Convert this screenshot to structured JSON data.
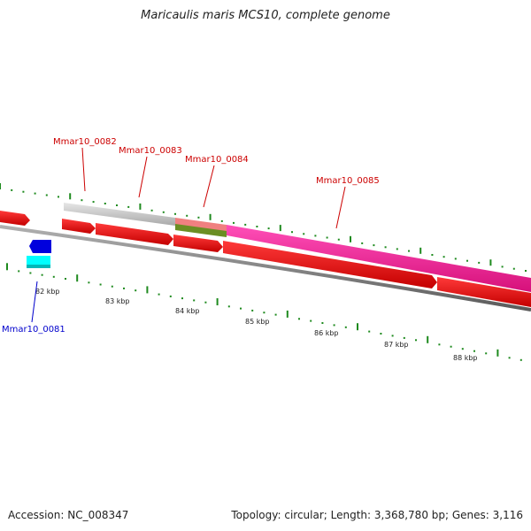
{
  "title": "Maricaulis maris MCS10, complete genome",
  "footer": {
    "accession": "Accession: NC_008347",
    "stats": "Topology: circular; Length: 3,368,780 bp; Genes: 3,116"
  },
  "colors": {
    "cds": "#ff0000",
    "gene_shade": "#c8c8c8",
    "pseudo_pink": "#f08080",
    "highlight_magenta": "#ff1493",
    "olive": "#6b8e23",
    "backbone": "#808080",
    "tick": "#008000",
    "label_red": "#cc0000",
    "label_blue": "#0000cc",
    "blue_feature": "#0000dd",
    "cyan_feature": "#00ffff"
  },
  "tick_labels": [
    "82 kbp",
    "83 kbp",
    "84 kbp",
    "85 kbp",
    "86 kbp",
    "87 kbp",
    "88 kbp"
  ],
  "gene_labels": [
    {
      "id": "Mmar10_0082",
      "color": "label_red"
    },
    {
      "id": "Mmar10_0083",
      "color": "label_red"
    },
    {
      "id": "Mmar10_0084",
      "color": "label_red"
    },
    {
      "id": "Mmar10_0085",
      "color": "label_red"
    },
    {
      "id": "Mmar10_0081",
      "color": "label_blue"
    }
  ]
}
